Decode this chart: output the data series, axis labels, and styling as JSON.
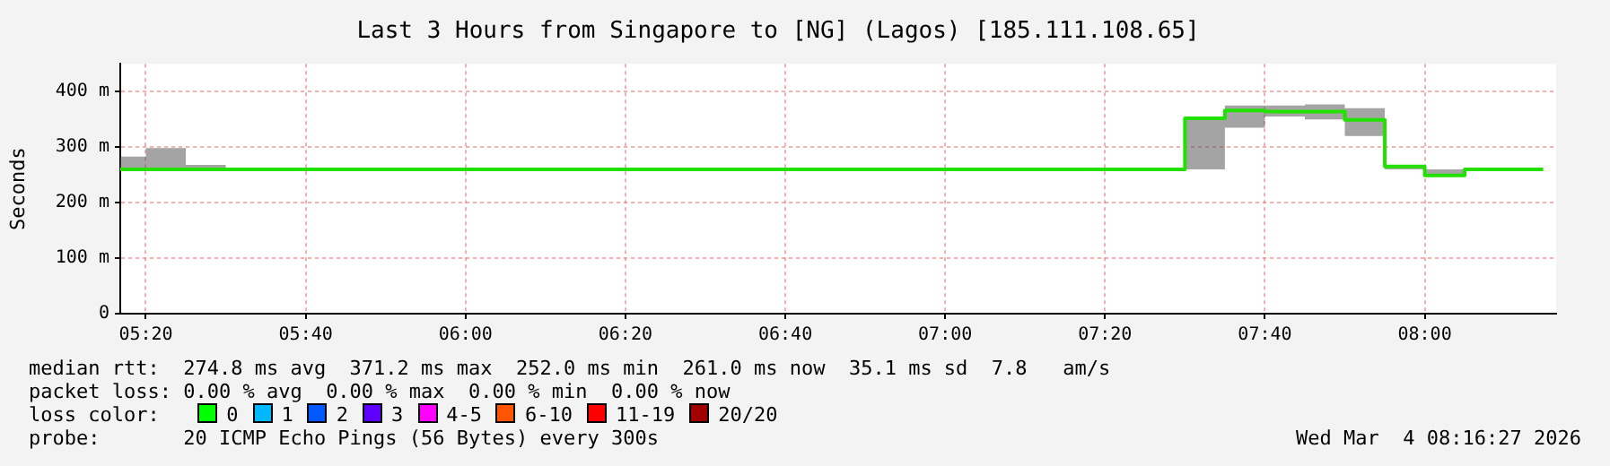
{
  "chart_data": {
    "type": "step",
    "title": "Last 3 Hours from Singapore to [NG] (Lagos) [185.111.108.65]",
    "ylabel": "Seconds",
    "x": [
      5.28,
      5.3333,
      5.4167,
      5.5,
      6.25,
      6.3333,
      7.5,
      7.5833,
      7.6667,
      7.75,
      7.8333,
      7.9167,
      8.0,
      8.0833,
      8.247
    ],
    "series": [
      {
        "color": "#22e000",
        "values": [
          260,
          260,
          260,
          260,
          260,
          260,
          352,
          366,
          364,
          364,
          349,
          265,
          249,
          260,
          260
        ],
        "lower": [
          260,
          260,
          260,
          260,
          260,
          260,
          260,
          335,
          355,
          350,
          320,
          260,
          249,
          260,
          260
        ],
        "upper": [
          283,
          298,
          268,
          260,
          263,
          260,
          355,
          375,
          375,
          377,
          370,
          265,
          260,
          260,
          260
        ]
      }
    ],
    "xlim": [
      5.28,
      8.274
    ],
    "ylim": [
      0,
      450
    ],
    "xticks": [
      {
        "value": 5.3333,
        "label": "05:20"
      },
      {
        "value": 5.6667,
        "label": "05:40"
      },
      {
        "value": 6.0,
        "label": "06:00"
      },
      {
        "value": 6.3333,
        "label": "06:20"
      },
      {
        "value": 6.6667,
        "label": "06:40"
      },
      {
        "value": 7.0,
        "label": "07:00"
      },
      {
        "value": 7.3333,
        "label": "07:20"
      },
      {
        "value": 7.6667,
        "label": "07:40"
      },
      {
        "value": 8.0,
        "label": "08:00"
      }
    ],
    "yticks": [
      0,
      {
        "value": 100,
        "label": "100 m"
      },
      {
        "value": 200,
        "label": "200 m"
      },
      {
        "value": 300,
        "label": "300 m"
      },
      {
        "value": 400,
        "label": "400 m"
      }
    ],
    "grid": true,
    "legend": false,
    "annotations": [
      "median rtt:  274.8 ms avg  371.2 ms max  252.0 ms min  261.0 ms now  35.1 ms sd  7.8   am/s",
      "packet loss: 0.00 % avg  0.00 % max  0.00 % min  0.00 % now",
      "loss color:",
      "0",
      "1",
      "2",
      "3",
      "4-5",
      "6-10",
      "11-19",
      "20/20",
      "probe:       20 ICMP Echo Pings (56 Bytes) every 300s",
      "Wed Mar  4 08:16:27 2026"
    ]
  }
}
